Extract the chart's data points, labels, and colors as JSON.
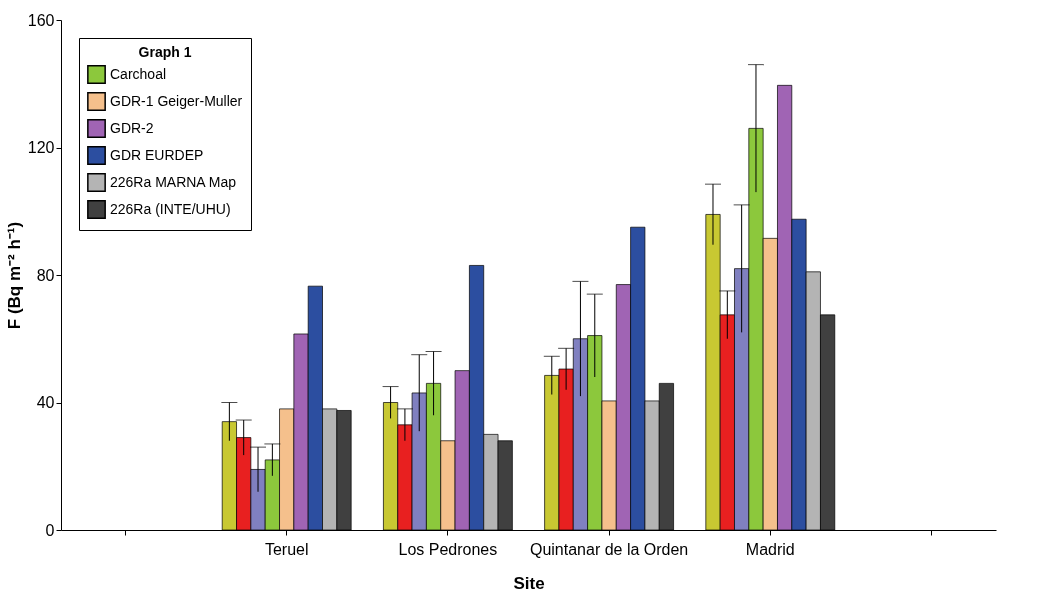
{
  "chart_data": {
    "type": "bar",
    "xlabel": "Site",
    "ylabel": "F (Bq m⁻² h⁻¹)",
    "legend_title": "Graph 1",
    "legend": "top left",
    "grid": false,
    "categories": [
      null,
      "Teruel",
      "Los Pedrones",
      "Quintanar de la Orden",
      "Madrid",
      null
    ],
    "ylim": [
      0,
      160
    ],
    "yticks": [
      0,
      40,
      80,
      120,
      160
    ],
    "series": [
      {
        "color": "#c8c832",
        "values": [
          null,
          34,
          40,
          48.5,
          99,
          null
        ],
        "errors": [
          null,
          6,
          5,
          6,
          9.5,
          null
        ]
      },
      {
        "color": "#e82020",
        "values": [
          null,
          29,
          33,
          50.5,
          67.5,
          null
        ],
        "errors": [
          null,
          5.5,
          5,
          6.5,
          7.5,
          null
        ]
      },
      {
        "color": "#8080c0",
        "values": [
          null,
          19,
          43,
          60,
          82,
          null
        ],
        "errors": [
          null,
          7,
          12,
          18,
          20,
          null
        ]
      },
      {
        "name": "Carchoal",
        "color": "#8cc83c",
        "values": [
          null,
          22,
          46,
          61,
          126,
          null
        ],
        "errors": [
          null,
          5,
          10,
          13,
          20,
          null
        ]
      },
      {
        "name": "GDR-1 Geiger-Muller",
        "color": "#f5c08c",
        "values": [
          null,
          38,
          28,
          40.5,
          91.5,
          null
        ]
      },
      {
        "name": "GDR-2",
        "color": "#a064b4",
        "values": [
          null,
          61.5,
          50,
          77,
          139.5,
          null
        ]
      },
      {
        "name": "GDR EURDEP",
        "color": "#2c4ea0",
        "values": [
          null,
          76.5,
          83,
          95,
          97.5,
          null
        ]
      },
      {
        "name": "226Ra MARNA Map",
        "color": "#b4b4b4",
        "values": [
          null,
          38,
          30,
          40.5,
          81,
          null
        ]
      },
      {
        "name": "226Ra (INTE/UHU)",
        "color": "#404040",
        "values": [
          null,
          37.5,
          28,
          46,
          67.5,
          null
        ]
      }
    ]
  }
}
